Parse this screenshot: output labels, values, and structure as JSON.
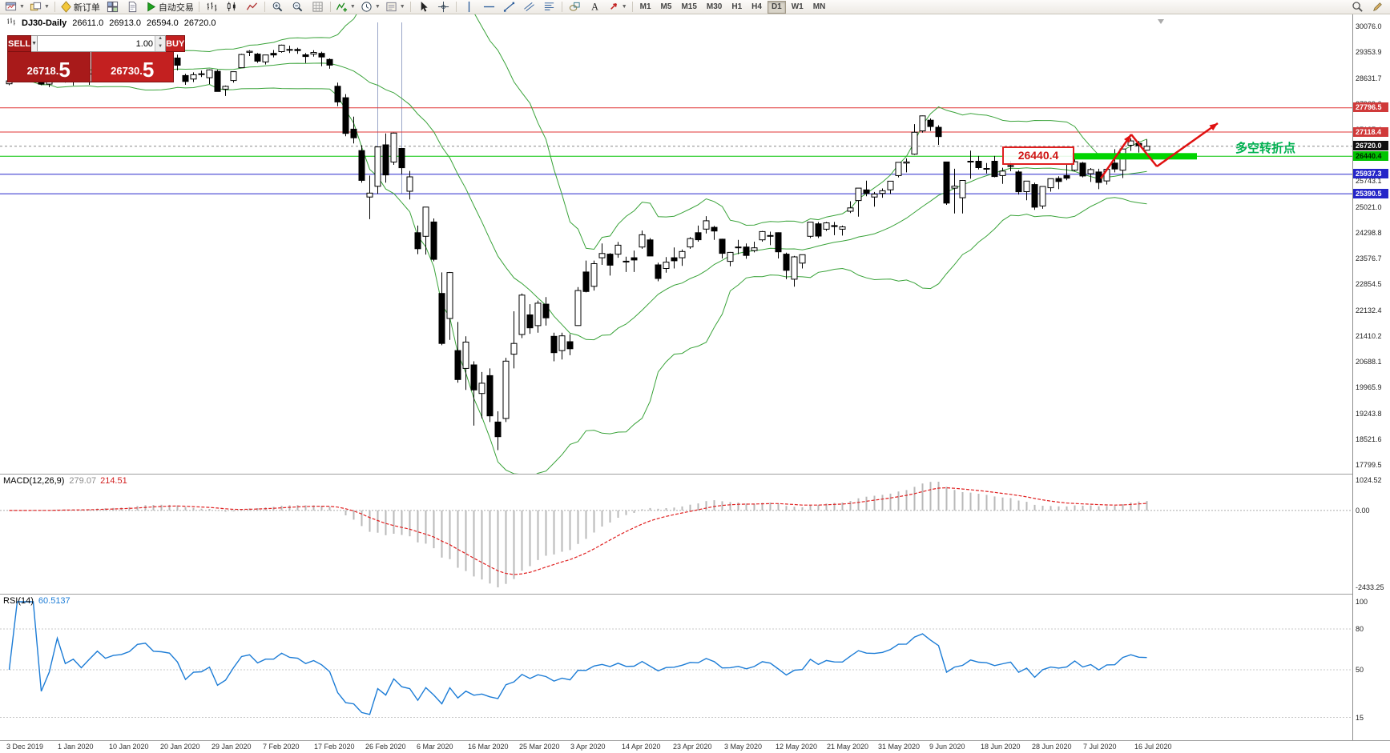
{
  "toolbar": {
    "items": [
      {
        "t": "i",
        "k": "window",
        "n": "new-chart-icon",
        "caret": true
      },
      {
        "t": "i",
        "k": "profiles",
        "n": "profiles-icon",
        "caret": true
      },
      {
        "t": "s"
      },
      {
        "t": "b",
        "k": "diamond",
        "n": "new-order-button",
        "label": "新订单"
      },
      {
        "t": "i",
        "k": "tile",
        "n": "market-watch-icon"
      },
      {
        "t": "i",
        "k": "doc",
        "n": "navigator-icon"
      },
      {
        "t": "b",
        "k": "play",
        "n": "autotrading-button",
        "label": "自动交易"
      },
      {
        "t": "s"
      },
      {
        "t": "i",
        "k": "bars",
        "n": "bar-chart-icon"
      },
      {
        "t": "i",
        "k": "candle",
        "n": "candlestick-chart-icon"
      },
      {
        "t": "i",
        "k": "linechart",
        "n": "line-chart-icon"
      },
      {
        "t": "s"
      },
      {
        "t": "i",
        "k": "zoom-in",
        "n": "zoom-in-icon"
      },
      {
        "t": "i",
        "k": "zoom-out",
        "n": "zoom-out-icon"
      },
      {
        "t": "i",
        "k": "grid",
        "n": "grid-icon"
      },
      {
        "t": "s"
      },
      {
        "t": "i",
        "k": "indicator",
        "n": "indicators-icon",
        "caret": true
      },
      {
        "t": "i",
        "k": "clock",
        "n": "periods-icon",
        "caret": true
      },
      {
        "t": "i",
        "k": "template",
        "n": "templates-icon",
        "caret": true
      },
      {
        "t": "s"
      },
      {
        "t": "i",
        "k": "cursor",
        "n": "cursor-icon"
      },
      {
        "t": "i",
        "k": "crosshair",
        "n": "crosshair-icon"
      },
      {
        "t": "s"
      },
      {
        "t": "i",
        "k": "vline",
        "n": "vertical-line-icon"
      },
      {
        "t": "i",
        "k": "hline",
        "n": "horizontal-line-icon"
      },
      {
        "t": "i",
        "k": "trend",
        "n": "trendline-icon"
      },
      {
        "t": "i",
        "k": "channel",
        "n": "channel-icon"
      },
      {
        "t": "i",
        "k": "fibo",
        "n": "fibonacci-icon"
      },
      {
        "t": "s"
      },
      {
        "t": "i",
        "k": "shapes",
        "n": "shapes-icon"
      },
      {
        "t": "i",
        "k": "text",
        "n": "text-label-icon"
      },
      {
        "t": "i",
        "k": "arrows",
        "n": "arrows-icon",
        "caret": true
      },
      {
        "t": "s"
      }
    ],
    "timeframes": [
      "M1",
      "M5",
      "M15",
      "M30",
      "H1",
      "H4",
      "D1",
      "W1",
      "MN"
    ],
    "active_timeframe": "D1",
    "right_items": [
      {
        "k": "search",
        "n": "search-icon"
      },
      {
        "k": "pencil",
        "n": "quick-edit-icon"
      }
    ]
  },
  "chart_header": {
    "symbol": "DJ30-Daily",
    "open": "26611.0",
    "high": "26913.0",
    "low": "26594.0",
    "close": "26720.0"
  },
  "trade_panel": {
    "sell_label": "SELL",
    "buy_label": "BUY",
    "volume": "1.00",
    "sell_price_main": "26718.",
    "sell_price_big": "5",
    "buy_price_main": "26730.",
    "buy_price_big": "5"
  },
  "annotations": {
    "callout_price": "26440.4",
    "turning_point_text": "多空转折点",
    "levels": [
      {
        "price": 27796.5,
        "label": "27796.5",
        "color": "red"
      },
      {
        "price": 27118.4,
        "label": "27118.4",
        "color": "red"
      },
      {
        "price": 26720.0,
        "label": "26720.0",
        "color": "black",
        "style": "current"
      },
      {
        "price": 26440.4,
        "label": "26440.4",
        "color": "green"
      },
      {
        "price": 25937.3,
        "label": "25937.3",
        "color": "blue"
      },
      {
        "price": 25390.5,
        "label": "25390.5",
        "color": "blue"
      }
    ]
  },
  "price_axis": {
    "labels": [
      "30076.0",
      "29353.9",
      "28631.7",
      "27909.6",
      "27187.4",
      "26465.3",
      "25743.1",
      "25021.0",
      "24298.8",
      "23576.7",
      "22854.5",
      "22132.4",
      "21410.2",
      "20688.1",
      "19965.9",
      "19243.8",
      "18521.6",
      "17799.5"
    ]
  },
  "time_axis": {
    "labels": [
      "3 Dec 2019",
      "1 Jan 2020",
      "10 Jan 2020",
      "20 Jan 2020",
      "29 Jan 2020",
      "7 Feb 2020",
      "17 Feb 2020",
      "26 Feb 2020",
      "6 Mar 2020",
      "16 Mar 2020",
      "25 Mar 2020",
      "3 Apr 2020",
      "14 Apr 2020",
      "23 Apr 2020",
      "3 May 2020",
      "12 May 2020",
      "21 May 2020",
      "31 May 2020",
      "9 Jun 2020",
      "18 Jun 2020",
      "28 Jun 2020",
      "7 Jul 2020",
      "16 Jul 2020"
    ]
  },
  "macd_panel": {
    "title": "MACD(12,26,9)",
    "value_main": "279.07",
    "value_signal": "214.51",
    "axis_top": "1024.52",
    "axis_zero": "0.00",
    "axis_bottom": "-2433.25"
  },
  "rsi_panel": {
    "title": "RSI(14)",
    "value": "60.5137",
    "axis": [
      "100",
      "80",
      "50",
      "15"
    ],
    "levels": [
      80,
      50,
      15
    ]
  },
  "chart_data": {
    "type": "candlestick",
    "symbol": "DJ30",
    "period": "Daily",
    "current_ohlc": {
      "open": 26611.0,
      "high": 26913.0,
      "low": 26594.0,
      "close": 26720.0
    },
    "visible_price_range": [
      17799.5,
      30076.0
    ],
    "horizontal_levels": [
      27796.5,
      27118.4,
      26720.0,
      26440.4,
      25937.3,
      25390.5
    ],
    "indicators": {
      "bollinger_bands": {
        "period": 20,
        "deviation": 2,
        "color": "green"
      },
      "macd": {
        "fast": 12,
        "slow": 26,
        "signal": 9,
        "main_value": 279.07,
        "signal_value": 214.51
      },
      "rsi": {
        "period": 14,
        "value": 60.5137
      }
    },
    "candles": [
      [
        28470,
        28580,
        28430,
        28550
      ],
      [
        28550,
        28590,
        28520,
        28565
      ],
      [
        28565,
        28625,
        28540,
        28615
      ],
      [
        28615,
        28700,
        28570,
        28645
      ],
      [
        28645,
        28665,
        28430,
        28462
      ],
      [
        28462,
        28547,
        28376,
        28538
      ],
      [
        28600,
        28890,
        28560,
        28868
      ],
      [
        28700,
        28720,
        28500,
        28634
      ],
      [
        28560,
        28710,
        28420,
        28703
      ],
      [
        28690,
        28760,
        28565,
        28583
      ],
      [
        28520,
        28760,
        28440,
        28745
      ],
      [
        28790,
        28960,
        28750,
        28956
      ],
      [
        28960,
        29010,
        28820,
        28823
      ],
      [
        28830,
        28910,
        28760,
        28907
      ],
      [
        28900,
        29055,
        28820,
        28939
      ],
      [
        28950,
        29127,
        28880,
        29030
      ],
      [
        29080,
        29300,
        29050,
        29297
      ],
      [
        29310,
        29373,
        29240,
        29348
      ],
      [
        29280,
        29320,
        29120,
        29196
      ],
      [
        29230,
        29320,
        29150,
        29186
      ],
      [
        29100,
        29190,
        28966,
        29160
      ],
      [
        29190,
        29288,
        28843,
        28989
      ],
      [
        28700,
        28750,
        28440,
        28535
      ],
      [
        28600,
        28790,
        28520,
        28722
      ],
      [
        28750,
        28840,
        28660,
        28734
      ],
      [
        28640,
        28870,
        28460,
        28859
      ],
      [
        28820,
        28860,
        28250,
        28256
      ],
      [
        28320,
        28420,
        28130,
        28399
      ],
      [
        28560,
        28790,
        28500,
        28807
      ],
      [
        28920,
        29310,
        28910,
        29290
      ],
      [
        29350,
        29408,
        29246,
        29379
      ],
      [
        29300,
        29330,
        29056,
        29102
      ],
      [
        29080,
        29280,
        29010,
        29276
      ],
      [
        29320,
        29415,
        29210,
        29276
      ],
      [
        29370,
        29568,
        29340,
        29551
      ],
      [
        29430,
        29535,
        29330,
        29423
      ],
      [
        29430,
        29481,
        29310,
        29398
      ],
      [
        29280,
        29330,
        29050,
        29232
      ],
      [
        29300,
        29409,
        29230,
        29348
      ],
      [
        29320,
        29368,
        28960,
        29219
      ],
      [
        29150,
        29180,
        28890,
        28992
      ],
      [
        28400,
        28500,
        27840,
        27960
      ],
      [
        28080,
        28180,
        27000,
        27081
      ],
      [
        27200,
        27550,
        26800,
        26957
      ],
      [
        26600,
        26750,
        25700,
        25766
      ],
      [
        25300,
        25900,
        24680,
        25409
      ],
      [
        25600,
        26706,
        25390,
        26703
      ],
      [
        26760,
        27080,
        25700,
        25917
      ],
      [
        26280,
        27100,
        26200,
        27090
      ],
      [
        26660,
        26670,
        25940,
        26121
      ],
      [
        25460,
        26030,
        25230,
        25864
      ],
      [
        24300,
        24500,
        23700,
        23851
      ],
      [
        24200,
        25020,
        23690,
        25018
      ],
      [
        24600,
        24700,
        23500,
        23553
      ],
      [
        22600,
        23190,
        21150,
        21200
      ],
      [
        21900,
        23200,
        21300,
        23185
      ],
      [
        21000,
        21800,
        20100,
        20188
      ],
      [
        20500,
        21400,
        19900,
        21237
      ],
      [
        20600,
        20700,
        18900,
        19898
      ],
      [
        19800,
        20400,
        19100,
        20087
      ],
      [
        20300,
        20500,
        19000,
        19173
      ],
      [
        19000,
        19300,
        18213,
        18591
      ],
      [
        19100,
        20800,
        19000,
        20704
      ],
      [
        20900,
        22100,
        20500,
        21200
      ],
      [
        21450,
        22600,
        21350,
        22552
      ],
      [
        22000,
        22300,
        21470,
        21636
      ],
      [
        21700,
        22400,
        21500,
        22327
      ],
      [
        22300,
        22500,
        21700,
        21917
      ],
      [
        21400,
        21500,
        20700,
        20943
      ],
      [
        21000,
        21500,
        20750,
        21413
      ],
      [
        21250,
        21460,
        20870,
        21052
      ],
      [
        21700,
        22780,
        21690,
        22680
      ],
      [
        23200,
        23520,
        22630,
        22654
      ],
      [
        22800,
        23520,
        22680,
        23434
      ],
      [
        23600,
        24000,
        23400,
        23719
      ],
      [
        23700,
        23730,
        23100,
        23390
      ],
      [
        23700,
        24040,
        23600,
        23950
      ],
      [
        23500,
        23630,
        23200,
        23504
      ],
      [
        23600,
        23800,
        23200,
        23538
      ],
      [
        23900,
        24360,
        23850,
        24242
      ],
      [
        24100,
        24150,
        23650,
        23650
      ],
      [
        23400,
        23460,
        22940,
        23019
      ],
      [
        23300,
        23620,
        23180,
        23476
      ],
      [
        23600,
        23885,
        23300,
        23515
      ],
      [
        23600,
        23830,
        23370,
        23775
      ],
      [
        23900,
        24180,
        23850,
        24134
      ],
      [
        24300,
        24500,
        24050,
        24102
      ],
      [
        24400,
        24765,
        24280,
        24634
      ],
      [
        24450,
        24490,
        24100,
        24346
      ],
      [
        24120,
        24130,
        23580,
        23724
      ],
      [
        23500,
        23760,
        23360,
        23750
      ],
      [
        23900,
        24100,
        23700,
        23883
      ],
      [
        23900,
        24000,
        23570,
        23665
      ],
      [
        23800,
        24050,
        23750,
        23876
      ],
      [
        24100,
        24350,
        24050,
        24331
      ],
      [
        24200,
        24330,
        23950,
        24222
      ],
      [
        24300,
        24310,
        23580,
        23765
      ],
      [
        23700,
        23740,
        23000,
        23248
      ],
      [
        23000,
        23650,
        22790,
        23625
      ],
      [
        23450,
        23690,
        23300,
        23685
      ],
      [
        24200,
        24600,
        24150,
        24597
      ],
      [
        24550,
        24600,
        24150,
        24207
      ],
      [
        24400,
        24600,
        24350,
        24576
      ],
      [
        24500,
        24600,
        24230,
        24474
      ],
      [
        24400,
        24500,
        24220,
        24465
      ],
      [
        24900,
        25180,
        24850,
        24995
      ],
      [
        25200,
        25548,
        24750,
        25548
      ],
      [
        25500,
        25760,
        25320,
        25401
      ],
      [
        25300,
        25440,
        25030,
        25383
      ],
      [
        25400,
        25540,
        25280,
        25475
      ],
      [
        25500,
        25750,
        25390,
        25743
      ],
      [
        25900,
        26270,
        25850,
        26270
      ],
      [
        26250,
        26380,
        25990,
        26282
      ],
      [
        26500,
        27340,
        26480,
        27111
      ],
      [
        27150,
        27580,
        27100,
        27572
      ],
      [
        27450,
        27500,
        27150,
        27272
      ],
      [
        27250,
        27310,
        26760,
        26990
      ],
      [
        26280,
        26290,
        25080,
        25128
      ],
      [
        25550,
        26090,
        24840,
        25605
      ],
      [
        25280,
        25760,
        24840,
        25763
      ],
      [
        26300,
        26600,
        25810,
        26290
      ],
      [
        26300,
        26450,
        26070,
        26120
      ],
      [
        26100,
        26250,
        25960,
        26080
      ],
      [
        26300,
        26450,
        25850,
        25871
      ],
      [
        25900,
        26120,
        25670,
        26025
      ],
      [
        26180,
        26310,
        26020,
        26156
      ],
      [
        26000,
        26050,
        25370,
        25446
      ],
      [
        25450,
        25750,
        25210,
        25746
      ],
      [
        25650,
        25700,
        24940,
        25016
      ],
      [
        25050,
        25600,
        24970,
        25596
      ],
      [
        25560,
        25820,
        25450,
        25813
      ],
      [
        25820,
        25880,
        25520,
        25735
      ],
      [
        25900,
        26200,
        25770,
        25827
      ],
      [
        26050,
        26460,
        26020,
        26287
      ],
      [
        26250,
        26280,
        25850,
        25890
      ],
      [
        25950,
        26110,
        25720,
        26067
      ],
      [
        26000,
        26090,
        25520,
        25706
      ],
      [
        25750,
        26100,
        25650,
        26075
      ],
      [
        26250,
        26640,
        25990,
        26085
      ],
      [
        26050,
        26650,
        25830,
        26643
      ],
      [
        26750,
        26940,
        26590,
        26870
      ],
      [
        26800,
        26870,
        26540,
        26735
      ],
      [
        26611,
        26913,
        26594,
        26720
      ]
    ]
  }
}
